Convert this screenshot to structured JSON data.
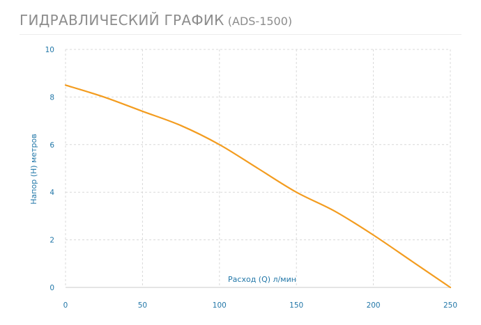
{
  "header": {
    "title": "ГИДРАВЛИЧЕСКИЙ ГРАФИК",
    "model": "(ADS-1500)"
  },
  "colors": {
    "line": "#f39c1f",
    "axis_text": "#2277a8",
    "grid": "#d8d8d8",
    "title": "#8c8c8c"
  },
  "chart_data": {
    "type": "line",
    "title": "ГИДРАВЛИЧЕСКИЙ ГРАФИК (ADS-1500)",
    "xlabel": "Расход (Q) л/мин",
    "ylabel": "Напор (H) метров",
    "xlim": [
      0,
      250
    ],
    "ylim": [
      0,
      10
    ],
    "xticks": [
      0,
      50,
      100,
      150,
      200,
      250
    ],
    "yticks": [
      0,
      2,
      4,
      6,
      8,
      10
    ],
    "grid": true,
    "series": [
      {
        "x": [
          0,
          25,
          50,
          75,
          100,
          125,
          150,
          175,
          200,
          225,
          250
        ],
        "values": [
          8.5,
          8.0,
          7.4,
          6.8,
          6.0,
          5.0,
          4.0,
          3.2,
          2.2,
          1.1,
          0.0
        ]
      }
    ]
  }
}
